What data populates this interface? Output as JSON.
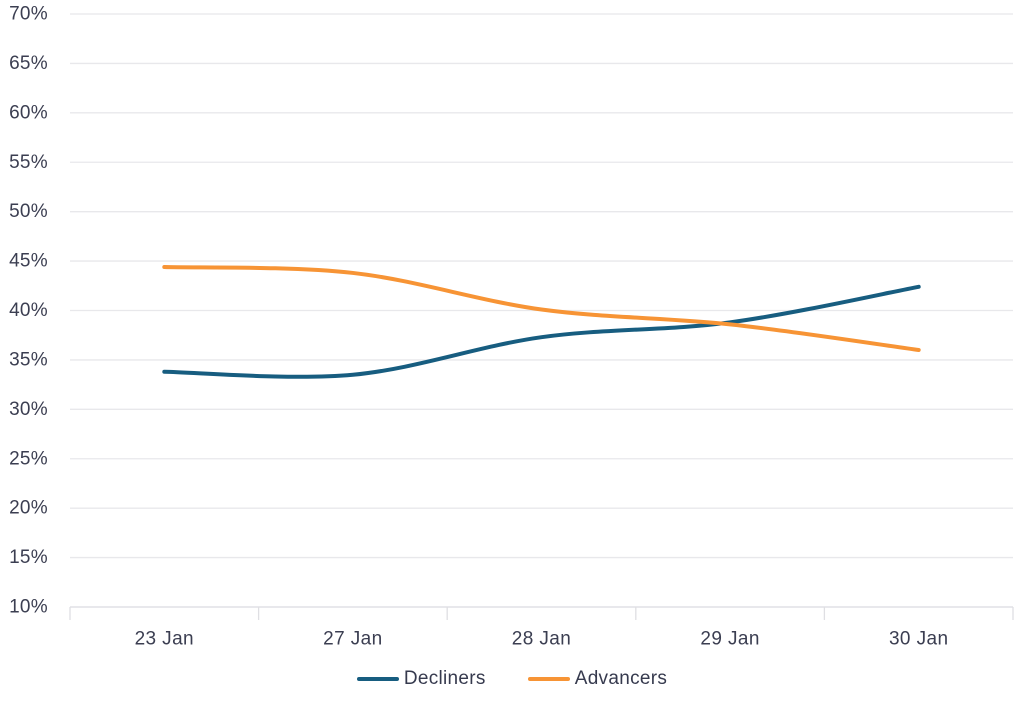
{
  "chart_data": {
    "type": "line",
    "title": "",
    "categories": [
      "23 Jan",
      "27 Jan",
      "28 Jan",
      "29 Jan",
      "30 Jan"
    ],
    "series": [
      {
        "name": "Decliners",
        "color": "#175D80",
        "values": [
          33.8,
          33.5,
          37.3,
          38.8,
          42.4
        ]
      },
      {
        "name": "Advancers",
        "color": "#F79435",
        "values": [
          44.4,
          43.8,
          40.1,
          38.6,
          36.0
        ]
      }
    ],
    "ylim": [
      10,
      70
    ],
    "y_ticks": [
      {
        "value": 70,
        "label": "70%"
      },
      {
        "value": 65,
        "label": "65%"
      },
      {
        "value": 60,
        "label": "60%"
      },
      {
        "value": 55,
        "label": "55%"
      },
      {
        "value": 50,
        "label": "50%"
      },
      {
        "value": 45,
        "label": "45%"
      },
      {
        "value": 40,
        "label": "40%"
      },
      {
        "value": 35,
        "label": "35%"
      },
      {
        "value": 30,
        "label": "30%"
      },
      {
        "value": 25,
        "label": "25%"
      },
      {
        "value": 20,
        "label": "20%"
      },
      {
        "value": 15,
        "label": "15%"
      },
      {
        "value": 10,
        "label": "10%"
      }
    ],
    "grid": true,
    "line_style": "smooth",
    "legend_position": "bottom",
    "colors": {
      "grid": "#E8E8EB",
      "axis": "#DFDFE3",
      "tick_text": "#3B3E51"
    }
  }
}
